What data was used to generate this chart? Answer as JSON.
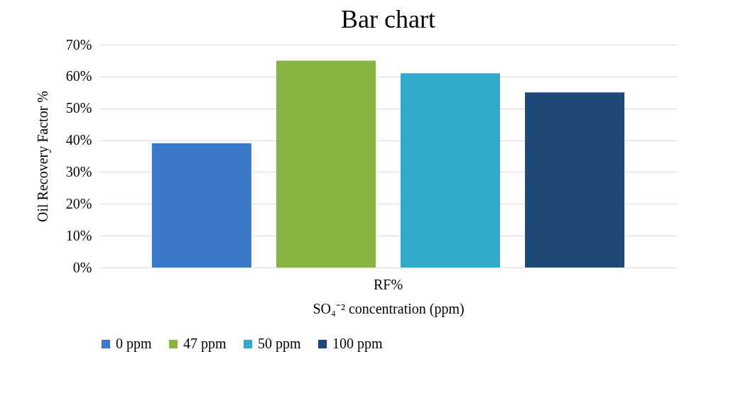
{
  "chart_data": {
    "type": "bar",
    "title": "Bar chart",
    "xlabel": "SO₄⁻² concentration (ppm)",
    "ylabel": "Oil Recovery Factor %",
    "categories": [
      "RF%"
    ],
    "series": [
      {
        "name": "0 ppm",
        "color": "#3a78c9",
        "values": [
          39
        ]
      },
      {
        "name": "47 ppm",
        "color": "#8ab544",
        "values": [
          65
        ]
      },
      {
        "name": "50 ppm",
        "color": "#34aacb",
        "values": [
          61
        ]
      },
      {
        "name": "100 ppm",
        "color": "#1f4877",
        "values": [
          55
        ]
      }
    ],
    "ylim": [
      0,
      70
    ],
    "yticks": [
      {
        "value": 0,
        "label": "0%"
      },
      {
        "value": 10,
        "label": "10%"
      },
      {
        "value": 20,
        "label": "20%"
      },
      {
        "value": 30,
        "label": "30%"
      },
      {
        "value": 40,
        "label": "40%"
      },
      {
        "value": 50,
        "label": "50%"
      },
      {
        "value": 60,
        "label": "60%"
      },
      {
        "value": 70,
        "label": "70%"
      }
    ],
    "grid": "y",
    "legend": "bottom"
  }
}
